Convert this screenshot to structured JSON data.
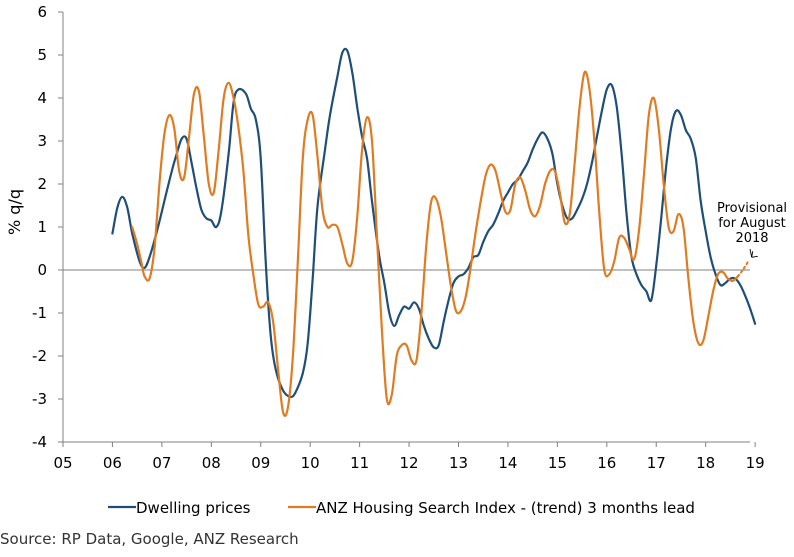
{
  "chart_data": {
    "type": "line",
    "title": "",
    "xlabel": "",
    "ylabel": "% q/q",
    "xlim": [
      2005,
      2019.2
    ],
    "ylim": [
      -4,
      6
    ],
    "y_ticks": [
      -4,
      -3,
      -2,
      -1,
      0,
      1,
      2,
      3,
      4,
      5,
      6
    ],
    "y_tick_labels": [
      "-4",
      "-3",
      "-2",
      "-1",
      "0",
      "1",
      "2",
      "3",
      "4",
      "5",
      "6"
    ],
    "x_ticks": [
      2005,
      2006,
      2007,
      2008,
      2009,
      2010,
      2011,
      2012,
      2013,
      2014,
      2015,
      2016,
      2017,
      2018,
      2019
    ],
    "x_tick_labels": [
      "05",
      "06",
      "07",
      "08",
      "09",
      "10",
      "11",
      "12",
      "13",
      "14",
      "15",
      "16",
      "17",
      "18",
      "19"
    ],
    "grid": false,
    "legend_position": "bottom",
    "series": [
      {
        "name": "Dwelling prices",
        "color": "#1f4e79",
        "points": [
          [
            2005.0,
            0.85
          ],
          [
            2005.1,
            1.45
          ],
          [
            2005.2,
            1.7
          ],
          [
            2005.3,
            1.45
          ],
          [
            2005.4,
            0.85
          ],
          [
            2005.55,
            0.2
          ],
          [
            2005.65,
            0.05
          ],
          [
            2005.75,
            0.3
          ],
          [
            2005.9,
            0.9
          ],
          [
            2006.05,
            1.6
          ],
          [
            2006.2,
            2.3
          ],
          [
            2006.3,
            2.7
          ],
          [
            2006.4,
            3.05
          ],
          [
            2006.5,
            3.05
          ],
          [
            2006.6,
            2.5
          ],
          [
            2006.7,
            1.9
          ],
          [
            2006.8,
            1.4
          ],
          [
            2006.9,
            1.2
          ],
          [
            2007.0,
            1.15
          ],
          [
            2007.1,
            1.0
          ],
          [
            2007.2,
            1.35
          ],
          [
            2007.35,
            2.7
          ],
          [
            2007.45,
            3.9
          ],
          [
            2007.55,
            4.2
          ],
          [
            2007.7,
            4.1
          ],
          [
            2007.8,
            3.75
          ],
          [
            2007.9,
            3.5
          ],
          [
            2008.0,
            2.6
          ],
          [
            2008.1,
            0.2
          ],
          [
            2008.2,
            -1.5
          ],
          [
            2008.3,
            -2.3
          ],
          [
            2008.45,
            -2.8
          ],
          [
            2008.6,
            -2.95
          ],
          [
            2008.7,
            -2.85
          ],
          [
            2008.85,
            -2.4
          ],
          [
            2008.95,
            -1.7
          ],
          [
            2009.05,
            -0.2
          ],
          [
            2009.15,
            1.5
          ],
          [
            2009.3,
            2.8
          ],
          [
            2009.4,
            3.6
          ],
          [
            2009.55,
            4.5
          ],
          [
            2009.65,
            5.05
          ],
          [
            2009.75,
            5.1
          ],
          [
            2009.85,
            4.6
          ],
          [
            2009.95,
            3.8
          ],
          [
            2010.05,
            3.1
          ],
          [
            2010.15,
            2.6
          ],
          [
            2010.25,
            1.6
          ],
          [
            2010.4,
            0.3
          ],
          [
            2010.5,
            -0.3
          ],
          [
            2010.6,
            -1.0
          ],
          [
            2010.7,
            -1.3
          ],
          [
            2010.8,
            -1.05
          ],
          [
            2010.9,
            -0.85
          ],
          [
            2011.0,
            -0.9
          ],
          [
            2011.1,
            -0.75
          ],
          [
            2011.2,
            -0.9
          ],
          [
            2011.3,
            -1.3
          ],
          [
            2011.4,
            -1.6
          ],
          [
            2011.5,
            -1.8
          ],
          [
            2011.6,
            -1.75
          ],
          [
            2011.7,
            -1.2
          ],
          [
            2011.8,
            -0.7
          ],
          [
            2011.9,
            -0.3
          ],
          [
            2012.0,
            -0.15
          ],
          [
            2012.1,
            -0.1
          ],
          [
            2012.2,
            0.05
          ],
          [
            2012.3,
            0.3
          ],
          [
            2012.4,
            0.35
          ],
          [
            2012.5,
            0.65
          ],
          [
            2012.6,
            0.9
          ],
          [
            2012.7,
            1.05
          ],
          [
            2012.8,
            1.3
          ],
          [
            2012.9,
            1.6
          ],
          [
            2013.0,
            1.8
          ],
          [
            2013.1,
            2.0
          ],
          [
            2013.2,
            2.1
          ],
          [
            2013.3,
            2.3
          ],
          [
            2013.4,
            2.5
          ],
          [
            2013.5,
            2.8
          ],
          [
            2013.6,
            3.05
          ],
          [
            2013.7,
            3.2
          ],
          [
            2013.8,
            3.05
          ],
          [
            2013.9,
            2.7
          ],
          [
            2014.0,
            2.0
          ],
          [
            2014.1,
            1.5
          ],
          [
            2014.2,
            1.2
          ],
          [
            2014.3,
            1.2
          ],
          [
            2014.4,
            1.4
          ],
          [
            2014.5,
            1.65
          ],
          [
            2014.6,
            2.0
          ],
          [
            2014.7,
            2.5
          ],
          [
            2014.8,
            3.1
          ],
          [
            2014.9,
            3.7
          ],
          [
            2015.0,
            4.2
          ],
          [
            2015.1,
            4.3
          ],
          [
            2015.2,
            3.8
          ],
          [
            2015.3,
            2.7
          ],
          [
            2015.4,
            1.3
          ],
          [
            2015.5,
            0.3
          ],
          [
            2015.6,
            -0.1
          ],
          [
            2015.7,
            -0.35
          ],
          [
            2015.8,
            -0.5
          ],
          [
            2015.9,
            -0.7
          ],
          [
            2016.0,
            0.1
          ],
          [
            2016.1,
            1.2
          ],
          [
            2016.2,
            2.4
          ],
          [
            2016.3,
            3.3
          ],
          [
            2016.4,
            3.7
          ],
          [
            2016.5,
            3.6
          ],
          [
            2016.6,
            3.25
          ],
          [
            2016.7,
            3.05
          ],
          [
            2016.8,
            2.6
          ],
          [
            2016.9,
            1.6
          ],
          [
            2017.0,
            0.9
          ],
          [
            2017.1,
            0.3
          ],
          [
            2017.2,
            -0.1
          ],
          [
            2017.3,
            -0.35
          ],
          [
            2017.4,
            -0.3
          ],
          [
            2017.5,
            -0.2
          ],
          [
            2017.6,
            -0.2
          ],
          [
            2017.7,
            -0.35
          ],
          [
            2017.8,
            -0.6
          ],
          [
            2017.9,
            -0.9
          ],
          [
            2018.0,
            -1.25
          ]
        ],
        "x_offset": 1.0
      },
      {
        "name": "ANZ Housing Search Index - (trend) 3 months lead",
        "color": "#e07b22",
        "points": [
          [
            2005.4,
            1.0
          ],
          [
            2005.5,
            0.6
          ],
          [
            2005.6,
            0.1
          ],
          [
            2005.65,
            -0.15
          ],
          [
            2005.75,
            -0.2
          ],
          [
            2005.85,
            0.5
          ],
          [
            2005.95,
            2.0
          ],
          [
            2006.05,
            3.15
          ],
          [
            2006.15,
            3.6
          ],
          [
            2006.25,
            3.3
          ],
          [
            2006.35,
            2.3
          ],
          [
            2006.45,
            2.15
          ],
          [
            2006.55,
            3.1
          ],
          [
            2006.65,
            4.1
          ],
          [
            2006.75,
            4.15
          ],
          [
            2006.85,
            3.1
          ],
          [
            2006.95,
            2.0
          ],
          [
            2007.05,
            1.8
          ],
          [
            2007.15,
            2.8
          ],
          [
            2007.25,
            4.0
          ],
          [
            2007.35,
            4.35
          ],
          [
            2007.45,
            4.0
          ],
          [
            2007.55,
            3.3
          ],
          [
            2007.65,
            2.3
          ],
          [
            2007.75,
            0.8
          ],
          [
            2007.85,
            -0.1
          ],
          [
            2007.95,
            -0.8
          ],
          [
            2008.05,
            -0.85
          ],
          [
            2008.15,
            -0.75
          ],
          [
            2008.25,
            -1.2
          ],
          [
            2008.35,
            -2.3
          ],
          [
            2008.45,
            -3.3
          ],
          [
            2008.55,
            -3.2
          ],
          [
            2008.65,
            -2.0
          ],
          [
            2008.75,
            0.2
          ],
          [
            2008.85,
            2.6
          ],
          [
            2008.95,
            3.5
          ],
          [
            2009.05,
            3.6
          ],
          [
            2009.15,
            2.6
          ],
          [
            2009.25,
            1.4
          ],
          [
            2009.35,
            1.0
          ],
          [
            2009.45,
            1.05
          ],
          [
            2009.55,
            1.0
          ],
          [
            2009.65,
            0.6
          ],
          [
            2009.75,
            0.15
          ],
          [
            2009.85,
            0.2
          ],
          [
            2009.95,
            1.2
          ],
          [
            2010.05,
            2.8
          ],
          [
            2010.15,
            3.55
          ],
          [
            2010.25,
            3.0
          ],
          [
            2010.35,
            0.8
          ],
          [
            2010.45,
            -1.4
          ],
          [
            2010.55,
            -3.0
          ],
          [
            2010.65,
            -2.9
          ],
          [
            2010.75,
            -2.0
          ],
          [
            2010.85,
            -1.75
          ],
          [
            2010.95,
            -1.75
          ],
          [
            2011.05,
            -2.1
          ],
          [
            2011.15,
            -2.1
          ],
          [
            2011.25,
            -1.0
          ],
          [
            2011.35,
            0.6
          ],
          [
            2011.45,
            1.6
          ],
          [
            2011.55,
            1.65
          ],
          [
            2011.65,
            1.2
          ],
          [
            2011.75,
            0.4
          ],
          [
            2011.85,
            -0.4
          ],
          [
            2011.95,
            -0.95
          ],
          [
            2012.05,
            -0.95
          ],
          [
            2012.15,
            -0.6
          ],
          [
            2012.25,
            0.1
          ],
          [
            2012.35,
            0.9
          ],
          [
            2012.45,
            1.6
          ],
          [
            2012.55,
            2.2
          ],
          [
            2012.65,
            2.45
          ],
          [
            2012.75,
            2.3
          ],
          [
            2012.85,
            1.8
          ],
          [
            2012.95,
            1.35
          ],
          [
            2013.05,
            1.4
          ],
          [
            2013.15,
            2.0
          ],
          [
            2013.25,
            2.15
          ],
          [
            2013.35,
            1.85
          ],
          [
            2013.45,
            1.4
          ],
          [
            2013.55,
            1.25
          ],
          [
            2013.65,
            1.5
          ],
          [
            2013.75,
            2.0
          ],
          [
            2013.85,
            2.3
          ],
          [
            2013.95,
            2.3
          ],
          [
            2014.05,
            1.8
          ],
          [
            2014.15,
            1.1
          ],
          [
            2014.25,
            1.3
          ],
          [
            2014.35,
            2.5
          ],
          [
            2014.45,
            3.8
          ],
          [
            2014.55,
            4.6
          ],
          [
            2014.65,
            4.2
          ],
          [
            2014.75,
            3.0
          ],
          [
            2014.85,
            1.3
          ],
          [
            2014.95,
            0.0
          ],
          [
            2015.05,
            -0.1
          ],
          [
            2015.15,
            0.2
          ],
          [
            2015.25,
            0.75
          ],
          [
            2015.35,
            0.75
          ],
          [
            2015.45,
            0.5
          ],
          [
            2015.55,
            0.25
          ],
          [
            2015.65,
            0.9
          ],
          [
            2015.75,
            2.2
          ],
          [
            2015.85,
            3.6
          ],
          [
            2015.95,
            4.0
          ],
          [
            2016.05,
            3.3
          ],
          [
            2016.15,
            2.0
          ],
          [
            2016.25,
            1.0
          ],
          [
            2016.35,
            0.9
          ],
          [
            2016.45,
            1.3
          ],
          [
            2016.55,
            1.0
          ],
          [
            2016.65,
            -0.2
          ],
          [
            2016.75,
            -1.2
          ],
          [
            2016.85,
            -1.7
          ],
          [
            2016.95,
            -1.65
          ],
          [
            2017.05,
            -1.1
          ],
          [
            2017.15,
            -0.5
          ],
          [
            2017.25,
            -0.1
          ],
          [
            2017.35,
            -0.05
          ],
          [
            2017.45,
            -0.2
          ],
          [
            2017.55,
            -0.25
          ],
          [
            2017.65,
            -0.15
          ]
        ],
        "provisional_points": [
          [
            2017.65,
            -0.15
          ],
          [
            2017.75,
            0.0
          ],
          [
            2017.85,
            0.18
          ]
        ],
        "x_offset": 1.0
      }
    ],
    "annotations": [
      {
        "text_lines": [
          "Provisional",
          "for August",
          "2018"
        ],
        "points_to": [
          2018.85,
          0.18
        ]
      }
    ],
    "source": "Source: RP Data, Google, ANZ Research"
  }
}
